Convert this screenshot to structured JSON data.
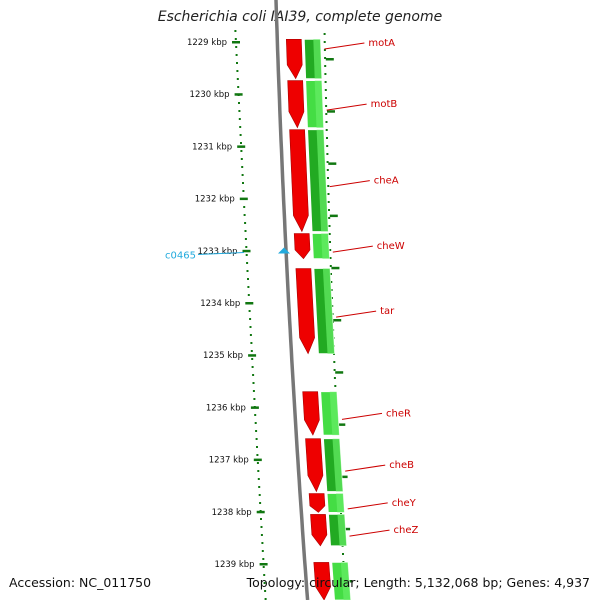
{
  "title": "Escherichia coli IAI39, complete genome",
  "footer": {
    "accession": "Accession: NC_011750",
    "summary": "Topology: circular; Length: 5,132,068 bp; Genes: 4,937"
  },
  "colors": {
    "forward_gene": "#ee0000",
    "track_green": "#22aa22",
    "track_lightgreen": "#44dd44",
    "label_red": "#cc0000",
    "feature_blue": "#22aadd",
    "backbone": "#777777",
    "tick_green": "#117711"
  },
  "ticks": [
    {
      "label": "1229 kbp",
      "kbp": 1229
    },
    {
      "label": "1230 kbp",
      "kbp": 1230
    },
    {
      "label": "1231 kbp",
      "kbp": 1231
    },
    {
      "label": "1232 kbp",
      "kbp": 1232
    },
    {
      "label": "1233 kbp",
      "kbp": 1233
    },
    {
      "label": "1234 kbp",
      "kbp": 1234
    },
    {
      "label": "1235 kbp",
      "kbp": 1235
    },
    {
      "label": "1236 kbp",
      "kbp": 1236
    },
    {
      "label": "1237 kbp",
      "kbp": 1237
    },
    {
      "label": "1238 kbp",
      "kbp": 1238
    },
    {
      "label": "1239 kbp",
      "kbp": 1239
    }
  ],
  "genes": [
    {
      "name": "motA",
      "start_kbp": 1228.93,
      "end_kbp": 1229.72
    },
    {
      "name": "motB",
      "start_kbp": 1229.72,
      "end_kbp": 1230.66
    },
    {
      "name": "cheA",
      "start_kbp": 1230.66,
      "end_kbp": 1232.65
    },
    {
      "name": "cheW",
      "start_kbp": 1232.65,
      "end_kbp": 1233.17
    },
    {
      "name": "tar",
      "start_kbp": 1233.32,
      "end_kbp": 1234.99
    },
    {
      "name": "cheR",
      "start_kbp": 1235.68,
      "end_kbp": 1236.55
    },
    {
      "name": "cheB",
      "start_kbp": 1236.58,
      "end_kbp": 1237.63
    },
    {
      "name": "cheY",
      "start_kbp": 1237.63,
      "end_kbp": 1238.03
    },
    {
      "name": "cheZ",
      "start_kbp": 1238.03,
      "end_kbp": 1238.67
    },
    {
      "name": "",
      "start_kbp": 1238.95,
      "end_kbp": 1240.2
    }
  ],
  "features": [
    {
      "name": "c0465",
      "kbp": 1233.3
    }
  ]
}
